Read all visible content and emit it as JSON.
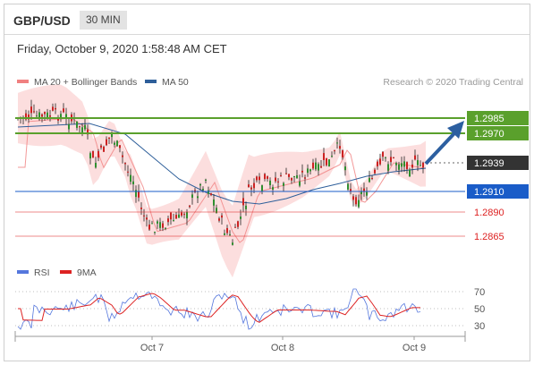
{
  "header": {
    "symbol": "GBP/USD",
    "timeframe": "30 MIN"
  },
  "datetime": "Friday, October 9, 2020 1:58:48 AM CET",
  "legend": {
    "ma20": {
      "label": "MA 20 + Bollinger Bands",
      "color": "#f08080"
    },
    "ma50": {
      "label": "MA 50",
      "color": "#2e5f9a"
    }
  },
  "credit": "Research © 2020 Trading Central",
  "rsi_legend": {
    "rsi": {
      "label": "RSI",
      "color": "#5577dd"
    },
    "ma9": {
      "label": "9MA",
      "color": "#dd2222"
    }
  },
  "price_levels": [
    {
      "label": "1.2985",
      "kind": "target",
      "color": "#5aa02c"
    },
    {
      "label": "1.2970",
      "kind": "target",
      "color": "#5aa02c"
    },
    {
      "label": "1.2939",
      "kind": "last",
      "color": "#333333"
    },
    {
      "label": "1.2910",
      "kind": "pivot",
      "color": "#1a5cc8"
    },
    {
      "label": "1.2890",
      "kind": "support",
      "color": "#dd2222"
    },
    {
      "label": "1.2865",
      "kind": "support",
      "color": "#dd2222"
    }
  ],
  "rsi_levels": [
    "70",
    "50",
    "30"
  ],
  "x_ticks": [
    "Oct 7",
    "Oct 8",
    "Oct 9"
  ],
  "colors": {
    "bull": "#2f8f2f",
    "bear": "#cc2222",
    "band": "#fbd3d3",
    "arrow": "#2c5fa0"
  }
}
